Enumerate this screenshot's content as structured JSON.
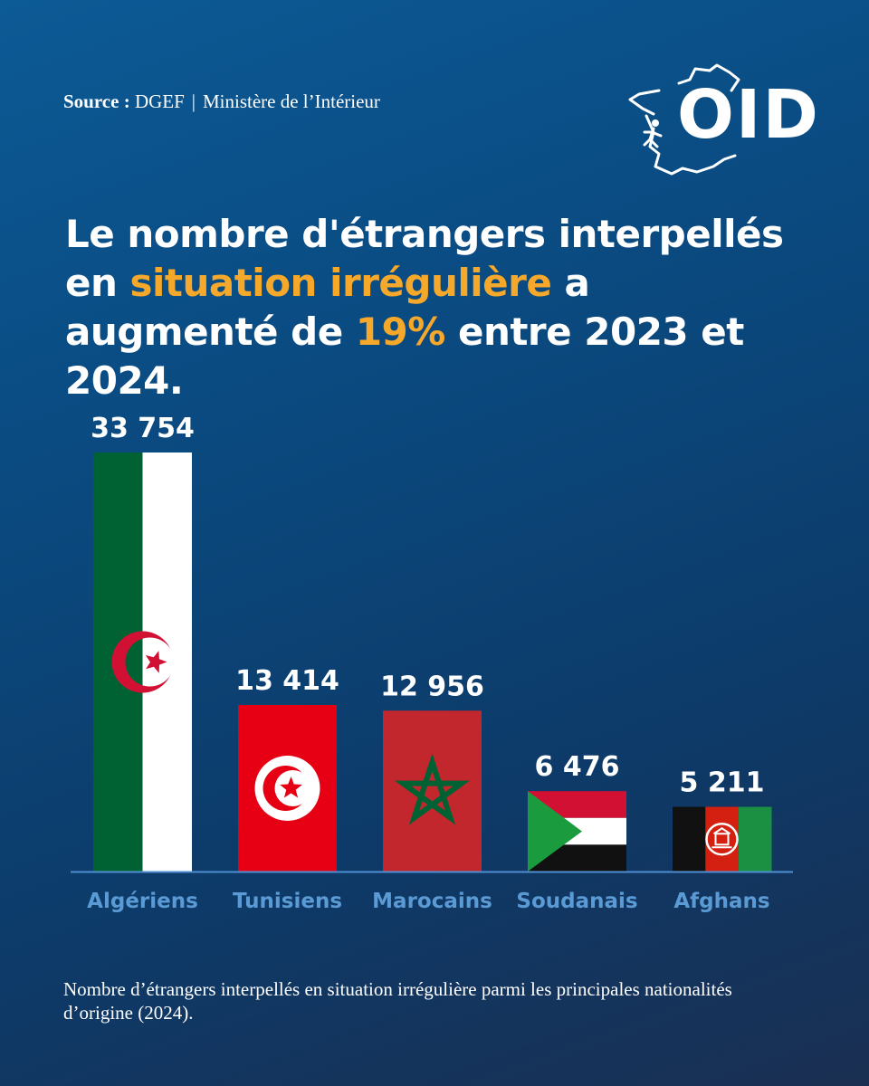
{
  "source": {
    "label": "Source :",
    "value": "DGEF",
    "separator": "|",
    "ministry": "Ministère de l’Intérieur"
  },
  "logo": {
    "text": "OID"
  },
  "headline": {
    "part1": "Le nombre d'étrangers interpellés en ",
    "highlight1": "situation irrégulière",
    "part2": " a augmenté de ",
    "highlight2": "19%",
    "part3": " entre 2023 et 2024."
  },
  "colors": {
    "highlight": "#f6a82a",
    "category_label": "#5b9bd5",
    "baseline": "#4f8ed0"
  },
  "chart_data": {
    "type": "bar",
    "categories": [
      "Algériens",
      "Tunisiens",
      "Marocains",
      "Soudanais",
      "Afghans"
    ],
    "values": [
      33754,
      13414,
      12956,
      6476,
      5211
    ],
    "value_labels": [
      "33 754",
      "13 414",
      "12 956",
      "6 476",
      "5 211"
    ],
    "bar_fill": [
      "flag-algeria",
      "flag-tunisia",
      "flag-morocco",
      "flag-sudan",
      "flag-afghanistan"
    ],
    "ylim": [
      0,
      33754
    ],
    "grid": false,
    "legend": "none"
  },
  "caption": "Nombre d’étrangers interpellés en situation irrégulière parmi les principales nationalités d’origine (2024)."
}
